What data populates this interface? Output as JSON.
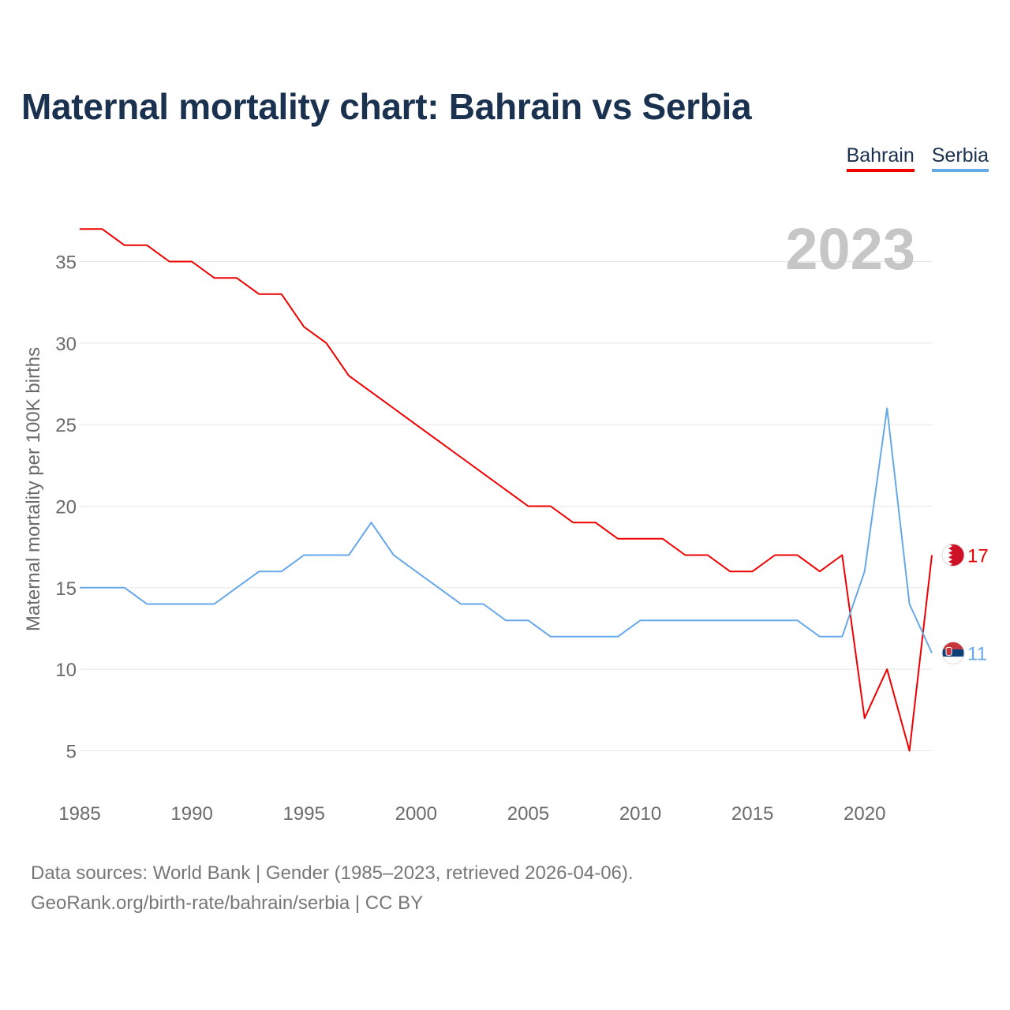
{
  "title": "Maternal mortality chart: Bahrain vs Serbia",
  "legend": [
    {
      "label": "Bahrain",
      "color": "#ee0000"
    },
    {
      "label": "Serbia",
      "color": "#66a8e8"
    }
  ],
  "year_watermark": "2023",
  "chart_data": {
    "type": "line",
    "title": "Maternal mortality chart: Bahrain vs Serbia",
    "xlabel": "",
    "ylabel": "Maternal mortality per 100K births",
    "xlim": [
      1985,
      2023
    ],
    "ylim": [
      2,
      38
    ],
    "xticks": [
      "1985",
      "1990",
      "1995",
      "2000",
      "2005",
      "2010",
      "2015",
      "2020"
    ],
    "yticks": [
      "5",
      "10",
      "15",
      "20",
      "25",
      "30",
      "35"
    ],
    "grid": true,
    "legend_position": "top-right",
    "x": [
      1985,
      1986,
      1987,
      1988,
      1989,
      1990,
      1991,
      1992,
      1993,
      1994,
      1995,
      1996,
      1997,
      1998,
      1999,
      2000,
      2001,
      2002,
      2003,
      2004,
      2005,
      2006,
      2007,
      2008,
      2009,
      2010,
      2011,
      2012,
      2013,
      2014,
      2015,
      2016,
      2017,
      2018,
      2019,
      2020,
      2021,
      2022,
      2023
    ],
    "series": [
      {
        "name": "Bahrain",
        "color": "#ee0000",
        "end_label": "17",
        "values": [
          37,
          37,
          36,
          36,
          35,
          35,
          34,
          34,
          33,
          33,
          31,
          30,
          28,
          27,
          26,
          25,
          24,
          23,
          22,
          21,
          20,
          20,
          19,
          19,
          18,
          18,
          18,
          17,
          17,
          16,
          16,
          17,
          17,
          16,
          17,
          7,
          10,
          5,
          17
        ]
      },
      {
        "name": "Serbia",
        "color": "#66a8e8",
        "end_label": "11",
        "values": [
          15,
          15,
          15,
          14,
          14,
          14,
          14,
          15,
          16,
          16,
          17,
          17,
          17,
          19,
          17,
          16,
          15,
          14,
          14,
          13,
          13,
          12,
          12,
          12,
          12,
          13,
          13,
          13,
          13,
          13,
          13,
          13,
          13,
          12,
          12,
          16,
          26,
          14,
          11
        ]
      }
    ]
  },
  "footer": {
    "source": "Data sources: World Bank | Gender (1985–2023, retrieved 2026-04-06).",
    "credit": "GeoRank.org/birth-rate/bahrain/serbia | CC BY"
  }
}
